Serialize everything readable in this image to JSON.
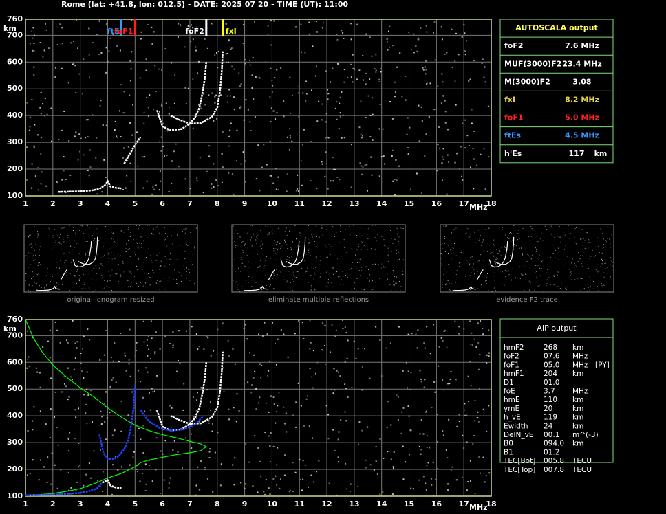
{
  "header": {
    "title": "Rome (lat: +41.8, lon: 012.5) - DATE: 2025 07 20 - TIME (UT): 11:00"
  },
  "chart_data": [
    {
      "type": "line",
      "x_label": "MHz",
      "y_label": "km",
      "xlim": [
        1,
        18
      ],
      "ylim": [
        100,
        760
      ],
      "xticks": [
        1,
        2,
        3,
        4,
        5,
        6,
        7,
        8,
        9,
        10,
        11,
        12,
        13,
        14,
        15,
        16,
        17,
        18
      ],
      "yticks": [
        100,
        200,
        300,
        400,
        500,
        600,
        700,
        760
      ],
      "grid": true,
      "markers": [
        {
          "name": "ftE",
          "x": 4.5,
          "color": "#3399ff"
        },
        {
          "name": "foF1",
          "x": 5.0,
          "color": "#ff2020"
        },
        {
          "name": "foF2",
          "x": 7.6,
          "color": "#ffffff"
        },
        {
          "name": "fxI",
          "x": 8.2,
          "color": "#ffff00"
        }
      ],
      "series": [
        {
          "color": "#ffffff",
          "x": [
            2.2,
            2.6,
            3.0,
            3.4,
            3.7,
            3.9,
            4.0,
            4.1,
            4.3,
            4.5
          ],
          "values": [
            115,
            116,
            117,
            120,
            126,
            140,
            155,
            135,
            130,
            128
          ]
        },
        {
          "color": "#ffffff",
          "x": [
            4.6,
            4.8,
            5.0,
            5.2
          ],
          "values": [
            220,
            255,
            290,
            320
          ]
        },
        {
          "color": "#ffffff",
          "x": [
            5.8,
            6.0,
            6.3,
            6.7,
            7.0,
            7.2,
            7.35,
            7.45,
            7.55,
            7.6
          ],
          "values": [
            420,
            360,
            345,
            350,
            370,
            395,
            430,
            480,
            540,
            600
          ]
        },
        {
          "color": "#ffffff",
          "x": [
            6.3,
            6.6,
            7.0,
            7.4,
            7.8,
            8.0,
            8.1,
            8.17,
            8.2
          ],
          "values": [
            400,
            385,
            370,
            372,
            395,
            430,
            490,
            570,
            640
          ]
        }
      ]
    },
    {
      "type": "line",
      "x_label": "MHz",
      "y_label": "km",
      "xlim": [
        1,
        18
      ],
      "ylim": [
        100,
        760
      ],
      "xticks": [
        1,
        2,
        3,
        4,
        5,
        6,
        7,
        8,
        9,
        10,
        11,
        12,
        13,
        14,
        15,
        16,
        17,
        18
      ],
      "yticks": [
        100,
        200,
        300,
        400,
        500,
        600,
        700,
        760
      ],
      "grid": true,
      "series": [
        {
          "color": "#ffffff",
          "x": [
            3.8,
            4.0,
            4.1,
            4.3,
            4.5
          ],
          "values": [
            150,
            160,
            140,
            132,
            130
          ]
        },
        {
          "color": "#ffffff",
          "x": [
            5.8,
            6.0,
            6.3,
            6.7,
            7.0,
            7.2,
            7.35,
            7.45,
            7.55,
            7.6
          ],
          "values": [
            420,
            360,
            345,
            350,
            370,
            395,
            430,
            480,
            540,
            600
          ]
        },
        {
          "color": "#ffffff",
          "x": [
            6.3,
            6.6,
            7.0,
            7.4,
            7.8,
            8.0,
            8.1,
            8.17,
            8.2
          ],
          "values": [
            400,
            385,
            370,
            372,
            395,
            430,
            490,
            570,
            640
          ]
        },
        {
          "color": "#00ff00",
          "x": [
            1.0,
            1.3,
            1.6,
            2.0,
            2.5,
            3.0,
            3.5,
            4.0,
            4.5,
            5.0,
            5.5,
            6.0,
            6.5,
            7.0,
            7.4,
            7.6,
            7.4,
            7.0,
            6.5,
            6.0,
            5.5,
            5.2,
            5.0,
            4.8,
            4.5,
            4.0,
            3.6,
            3.0,
            2.5,
            2.0,
            1.5,
            1.0
          ],
          "values": [
            760,
            690,
            640,
            590,
            545,
            505,
            470,
            430,
            395,
            365,
            345,
            330,
            318,
            305,
            295,
            285,
            270,
            262,
            255,
            245,
            235,
            225,
            210,
            200,
            185,
            168,
            150,
            128,
            118,
            110,
            106,
            104
          ]
        },
        {
          "color": "#2040ff",
          "x": [
            3.7,
            3.85,
            4.0,
            4.2,
            4.4,
            4.6,
            4.75,
            4.85,
            4.95,
            5.0
          ],
          "values": [
            330,
            260,
            240,
            238,
            250,
            275,
            310,
            360,
            430,
            510
          ]
        },
        {
          "color": "#2040ff",
          "x": [
            5.2,
            5.5,
            5.9,
            6.3,
            6.8,
            7.2,
            7.5
          ],
          "values": [
            420,
            380,
            355,
            345,
            350,
            370,
            400
          ]
        },
        {
          "color": "#2040ff",
          "x": [
            1.0,
            1.5,
            2.0,
            2.5,
            3.0,
            3.3,
            3.6,
            3.8
          ],
          "values": [
            103,
            104,
            106,
            108,
            112,
            118,
            128,
            150
          ]
        }
      ]
    }
  ],
  "thumbnails": [
    "original ionogram resized",
    "eliminate multiple reflections",
    "evidence F2 trace"
  ],
  "autoscala": {
    "title": "AUTOSCALA output",
    "rows": [
      {
        "label": "foF2",
        "value": "7.6 MHz",
        "color": "#ffffff"
      },
      {
        "label": "MUF(3000)F2",
        "value": "23.4 MHz",
        "color": "#ffffff"
      },
      {
        "label": "M(3000)F2",
        "value": "3.08",
        "color": "#ffffff"
      },
      {
        "label": "fxI",
        "value": "8.2 MHz",
        "color": "#e6d24a"
      },
      {
        "label": "foF1",
        "value": "5.0 MHz",
        "color": "#ff2020"
      },
      {
        "label": "ftEs",
        "value": "4.5 MHz",
        "color": "#3399ff"
      },
      {
        "label": "h'Es",
        "value": "117",
        "unit": "km",
        "color": "#ffffff"
      }
    ]
  },
  "aip": {
    "title": "AIP output",
    "rows": [
      [
        "hmF2",
        "268",
        "km"
      ],
      [
        "foF2",
        "07.6",
        "MHz"
      ],
      [
        "foF1",
        "05.0",
        "MHz",
        "[PY]"
      ],
      [
        "hmF1",
        "204",
        "km"
      ],
      [
        "D1",
        "01.0"
      ],
      [
        "foE",
        "3.7",
        "MHz"
      ],
      [
        "hmE",
        "110",
        "km"
      ],
      [
        "ymE",
        "20",
        "km"
      ],
      [
        "h_vE",
        "119",
        "km"
      ],
      [
        "Ewidth",
        "24",
        "km"
      ],
      [
        "DelN_vE",
        "00.1",
        "m^(-3)"
      ],
      [
        "B0",
        "094.0",
        "km"
      ],
      [
        "B1",
        "01.2"
      ],
      [
        "TEC[Bot]",
        "005.8",
        "TECU"
      ],
      [
        "TEC[Top]",
        "007.8",
        "TECU"
      ]
    ]
  }
}
